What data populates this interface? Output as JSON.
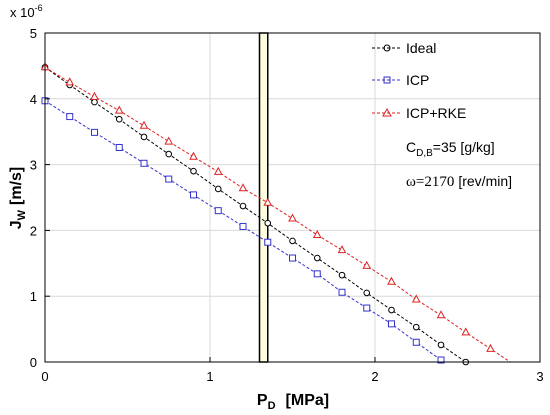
{
  "chart_data": {
    "type": "line",
    "xlabel": "P",
    "xlabel_sub": "D",
    "xlabel_unit": "[MPa]",
    "ylabel": "J",
    "ylabel_sub": "W",
    "ylabel_unit": "[m/s]",
    "y_multiplier": "x 10",
    "y_multiplier_exp": "-6",
    "xlim": [
      0,
      3
    ],
    "ylim": [
      0,
      5
    ],
    "xticks": [
      "0",
      "1",
      "2",
      "3"
    ],
    "yticks": [
      "0",
      "1",
      "2",
      "3",
      "4",
      "5"
    ],
    "grid": true,
    "legend_position": "top-right",
    "highlight_band": {
      "x0": 1.3,
      "x1": 1.35,
      "color": "#fdfde0"
    },
    "annotations": {
      "concentration": {
        "main": "C",
        "sub": "D,B",
        "text": "=35 [g/kg]"
      },
      "speed": {
        "symbol": "ω",
        "value": "=2170",
        "unit": "[rev/min]"
      }
    },
    "series": [
      {
        "name": "Ideal",
        "color": "#000000",
        "marker": "circle",
        "x": [
          0,
          0.15,
          0.3,
          0.45,
          0.6,
          0.75,
          0.9,
          1.05,
          1.2,
          1.35,
          1.5,
          1.65,
          1.8,
          1.95,
          2.1,
          2.25,
          2.4,
          2.55
        ],
        "y": [
          4.48,
          4.21,
          3.95,
          3.69,
          3.42,
          3.16,
          2.9,
          2.63,
          2.37,
          2.11,
          1.84,
          1.58,
          1.32,
          1.05,
          0.79,
          0.53,
          0.26,
          0.0
        ]
      },
      {
        "name": "ICP",
        "color": "#3333cc",
        "marker": "square",
        "x": [
          0,
          0.15,
          0.3,
          0.45,
          0.6,
          0.75,
          0.9,
          1.05,
          1.2,
          1.35,
          1.5,
          1.65,
          1.8,
          1.95,
          2.1,
          2.25,
          2.4
        ],
        "y": [
          3.97,
          3.73,
          3.49,
          3.26,
          3.02,
          2.78,
          2.54,
          2.3,
          2.06,
          1.82,
          1.58,
          1.34,
          1.06,
          0.82,
          0.58,
          0.3,
          0.03
        ]
      },
      {
        "name": "ICP+RKE",
        "color": "#dd2222",
        "marker": "triangle",
        "x": [
          0,
          0.15,
          0.3,
          0.45,
          0.6,
          0.75,
          0.9,
          1.05,
          1.2,
          1.35,
          1.5,
          1.65,
          1.8,
          1.95,
          2.1,
          2.25,
          2.4,
          2.55,
          2.7
        ],
        "y": [
          4.48,
          4.25,
          4.03,
          3.82,
          3.59,
          3.35,
          3.12,
          2.89,
          2.64,
          2.42,
          2.18,
          1.93,
          1.7,
          1.46,
          1.22,
          0.95,
          0.71,
          0.45,
          0.2
        ]
      }
    ]
  }
}
